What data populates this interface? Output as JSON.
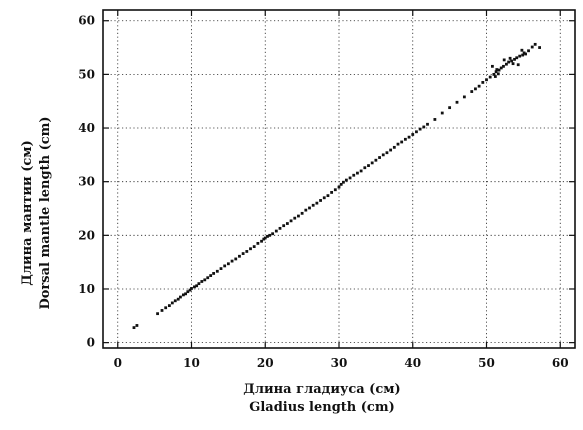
{
  "chart_data": {
    "type": "scatter",
    "title": "",
    "xlabel": [
      "Длина гладиуса (см)",
      "Gladius length (cm)"
    ],
    "ylabel": [
      "Длина мантии (см)",
      "Dorsal mantle length (cm)"
    ],
    "xlim": [
      -2,
      62
    ],
    "ylim": [
      -1,
      62
    ],
    "xticks": [
      0,
      10,
      20,
      30,
      40,
      50,
      60
    ],
    "yticks": [
      0,
      10,
      20,
      30,
      40,
      50,
      60
    ],
    "grid": true,
    "series": [
      {
        "points": [
          [
            2.2,
            2.8
          ],
          [
            2.6,
            3.2
          ],
          [
            5.4,
            5.4
          ],
          [
            6.0,
            6.0
          ],
          [
            6.5,
            6.5
          ],
          [
            7.0,
            6.9
          ],
          [
            7.4,
            7.4
          ],
          [
            7.8,
            7.8
          ],
          [
            8.2,
            8.1
          ],
          [
            8.5,
            8.5
          ],
          [
            8.9,
            8.9
          ],
          [
            9.2,
            9.1
          ],
          [
            9.5,
            9.5
          ],
          [
            9.8,
            9.8
          ],
          [
            10.0,
            10.1
          ],
          [
            10.4,
            10.4
          ],
          [
            10.7,
            10.6
          ],
          [
            11.0,
            11.0
          ],
          [
            11.4,
            11.4
          ],
          [
            11.8,
            11.7
          ],
          [
            12.2,
            12.1
          ],
          [
            12.6,
            12.5
          ],
          [
            13.0,
            12.9
          ],
          [
            13.5,
            13.3
          ],
          [
            14.0,
            13.8
          ],
          [
            14.5,
            14.3
          ],
          [
            15.0,
            14.7
          ],
          [
            15.5,
            15.2
          ],
          [
            16.0,
            15.6
          ],
          [
            16.5,
            16.1
          ],
          [
            17.0,
            16.6
          ],
          [
            17.5,
            17.0
          ],
          [
            18.0,
            17.5
          ],
          [
            18.5,
            17.9
          ],
          [
            19.0,
            18.5
          ],
          [
            19.5,
            18.9
          ],
          [
            19.8,
            19.3
          ],
          [
            20.0,
            19.5
          ],
          [
            20.3,
            19.8
          ],
          [
            20.6,
            20.0
          ],
          [
            21.0,
            20.3
          ],
          [
            21.5,
            20.8
          ],
          [
            22.0,
            21.3
          ],
          [
            22.5,
            21.8
          ],
          [
            23.0,
            22.2
          ],
          [
            23.5,
            22.7
          ],
          [
            24.0,
            23.2
          ],
          [
            24.5,
            23.6
          ],
          [
            25.0,
            24.1
          ],
          [
            25.5,
            24.7
          ],
          [
            26.0,
            25.1
          ],
          [
            26.5,
            25.6
          ],
          [
            27.0,
            26.0
          ],
          [
            27.5,
            26.5
          ],
          [
            28.0,
            27.0
          ],
          [
            28.5,
            27.4
          ],
          [
            29.0,
            28.0
          ],
          [
            29.5,
            28.5
          ],
          [
            30.0,
            29.0
          ],
          [
            30.3,
            29.5
          ],
          [
            30.6,
            29.9
          ],
          [
            31.0,
            30.3
          ],
          [
            31.5,
            30.7
          ],
          [
            32.0,
            31.2
          ],
          [
            32.5,
            31.6
          ],
          [
            33.0,
            32.0
          ],
          [
            33.5,
            32.6
          ],
          [
            34.0,
            33.0
          ],
          [
            34.5,
            33.5
          ],
          [
            35.0,
            34.0
          ],
          [
            35.5,
            34.5
          ],
          [
            36.0,
            35.0
          ],
          [
            36.5,
            35.4
          ],
          [
            37.0,
            35.9
          ],
          [
            37.5,
            36.4
          ],
          [
            38.0,
            37.0
          ],
          [
            38.5,
            37.4
          ],
          [
            39.0,
            37.9
          ],
          [
            39.5,
            38.3
          ],
          [
            40.0,
            38.8
          ],
          [
            40.5,
            39.3
          ],
          [
            41.0,
            39.8
          ],
          [
            41.5,
            40.2
          ],
          [
            42.0,
            40.7
          ],
          [
            43.0,
            41.6
          ],
          [
            44.0,
            42.8
          ],
          [
            45.0,
            43.8
          ],
          [
            46.0,
            44.8
          ],
          [
            47.0,
            45.8
          ],
          [
            48.0,
            46.8
          ],
          [
            48.5,
            47.3
          ],
          [
            49.0,
            47.8
          ],
          [
            49.5,
            48.5
          ],
          [
            50.0,
            49.0
          ],
          [
            50.5,
            49.5
          ],
          [
            51.0,
            50.0
          ],
          [
            51.3,
            50.5
          ],
          [
            51.7,
            50.8
          ],
          [
            52.0,
            51.2
          ],
          [
            52.3,
            51.5
          ],
          [
            52.7,
            51.9
          ],
          [
            53.0,
            52.3
          ],
          [
            53.4,
            52.5
          ],
          [
            53.8,
            52.8
          ],
          [
            54.1,
            53.1
          ],
          [
            54.5,
            53.4
          ],
          [
            54.9,
            53.6
          ],
          [
            55.3,
            53.8
          ],
          [
            55.7,
            54.4
          ],
          [
            56.2,
            55.1
          ],
          [
            56.6,
            55.6
          ],
          [
            57.2,
            55.0
          ],
          [
            51.2,
            49.6
          ],
          [
            51.6,
            50.1
          ],
          [
            52.4,
            52.7
          ],
          [
            53.2,
            53.0
          ],
          [
            54.3,
            51.8
          ],
          [
            54.8,
            54.5
          ],
          [
            55.1,
            54.0
          ],
          [
            51.4,
            50.9
          ],
          [
            50.8,
            51.5
          ],
          [
            53.6,
            52.0
          ]
        ]
      }
    ]
  }
}
